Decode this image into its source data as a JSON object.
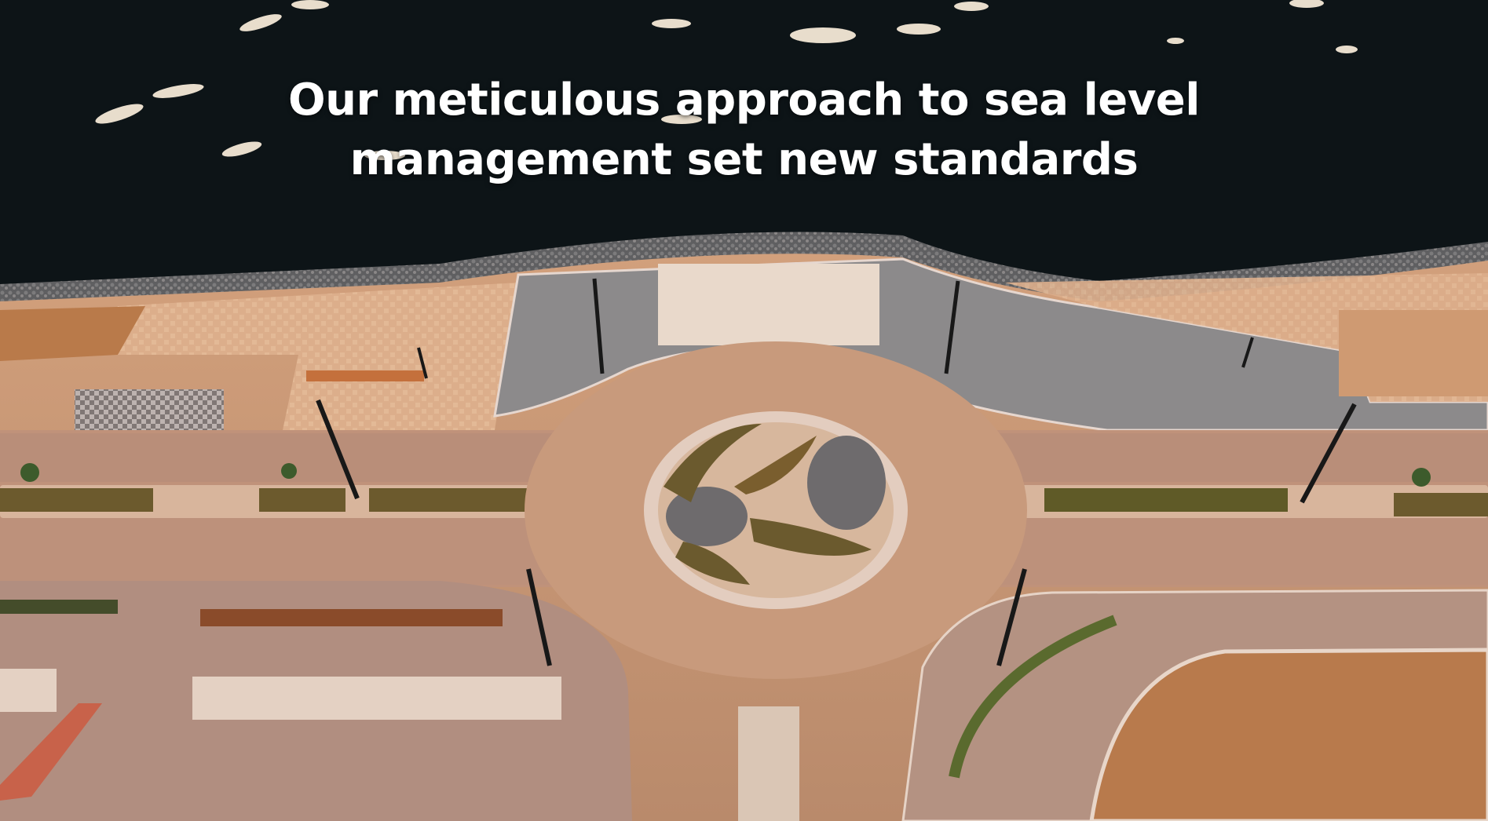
{
  "caption": {
    "line1": "Our meticulous approach to sea level",
    "line2": "management set new standards"
  },
  "colors": {
    "sea": "#0d1417",
    "breakwater": "#6f6f70",
    "paving": "#d8a884",
    "road": "#c89a7a",
    "plaza_grey": "#8d8988",
    "planting": "#6b5a2e",
    "sand": "#b5703f"
  },
  "scene": {
    "subject": "aerial-view-of-waterfront-roundabout",
    "elements": [
      "sea-with-boats",
      "rock-breakwater",
      "promenade",
      "roundabout",
      "street-lamps",
      "planted-medians"
    ]
  }
}
